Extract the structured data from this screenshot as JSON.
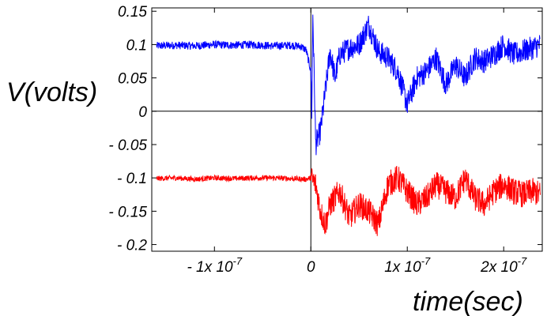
{
  "chart_data": {
    "type": "line",
    "title": "",
    "xlabel": "time(sec)",
    "ylabel": "V(volts)",
    "xlim": [
      -1.65e-07,
      2.4e-07
    ],
    "ylim": [
      -0.21,
      0.155
    ],
    "grid": false,
    "x_ticks": [
      {
        "value": -1e-07,
        "label": "- 1x 10",
        "exp": "-7"
      },
      {
        "value": 0,
        "label": "0",
        "exp": ""
      },
      {
        "value": 1e-07,
        "label": "1x 10",
        "exp": "-7"
      },
      {
        "value": 2e-07,
        "label": "2x 10",
        "exp": "-7"
      }
    ],
    "y_ticks": [
      {
        "value": 0.15,
        "label": "0.15"
      },
      {
        "value": 0.1,
        "label": "0.1"
      },
      {
        "value": 0.05,
        "label": "0.05"
      },
      {
        "value": 0,
        "label": "0"
      },
      {
        "value": -0.05,
        "label": "- 0.05"
      },
      {
        "value": -0.1,
        "label": "- 0.1"
      },
      {
        "value": -0.15,
        "label": "- 0.15"
      },
      {
        "value": -0.2,
        "label": "- 0.2"
      }
    ],
    "series": [
      {
        "color": "#0000ff",
        "x": [
          -1.6e-07,
          -1.4e-07,
          -1.2e-07,
          -1e-07,
          -8e-08,
          -6e-08,
          -4e-08,
          -2e-08,
          -1e-08,
          -5e-09,
          0,
          1e-09,
          2e-09,
          5e-09,
          1e-08,
          1.5e-08,
          2e-08,
          2.5e-08,
          3e-08,
          4e-08,
          5e-08,
          6e-08,
          7e-08,
          8e-08,
          9e-08,
          1e-07,
          1.1e-07,
          1.2e-07,
          1.3e-07,
          1.4e-07,
          1.5e-07,
          1.6e-07,
          1.7e-07,
          1.8e-07,
          1.9e-07,
          2e-07,
          2.1e-07,
          2.2e-07,
          2.3e-07,
          2.38e-07
        ],
        "y": [
          0.098,
          0.099,
          0.098,
          0.1,
          0.099,
          0.1,
          0.098,
          0.099,
          0.097,
          0.092,
          0.06,
          -0.01,
          0.15,
          -0.05,
          -0.03,
          0.03,
          0.09,
          0.05,
          0.085,
          0.095,
          0.1,
          0.13,
          0.09,
          0.08,
          0.06,
          0.01,
          0.05,
          0.06,
          0.08,
          0.04,
          0.07,
          0.05,
          0.08,
          0.075,
          0.085,
          0.1,
          0.085,
          0.09,
          0.095,
          0.1
        ],
        "noise": 0.018,
        "noise_before_event": 0.006
      },
      {
        "color": "#ff0000",
        "x": [
          -1.6e-07,
          -1.4e-07,
          -1.2e-07,
          -1e-07,
          -8e-08,
          -6e-08,
          -4e-08,
          -2e-08,
          -5e-09,
          0,
          5e-09,
          1e-08,
          1.5e-08,
          2e-08,
          3e-08,
          4e-08,
          5e-08,
          6e-08,
          7e-08,
          8e-08,
          9e-08,
          1e-07,
          1.1e-07,
          1.2e-07,
          1.3e-07,
          1.4e-07,
          1.5e-07,
          1.6e-07,
          1.7e-07,
          1.8e-07,
          1.9e-07,
          2e-07,
          2.1e-07,
          2.2e-07,
          2.3e-07,
          2.38e-07
        ],
        "y": [
          -0.101,
          -0.1,
          -0.102,
          -0.1,
          -0.101,
          -0.1,
          -0.1,
          -0.101,
          -0.102,
          -0.1,
          -0.11,
          -0.15,
          -0.17,
          -0.14,
          -0.12,
          -0.16,
          -0.14,
          -0.15,
          -0.17,
          -0.11,
          -0.1,
          -0.12,
          -0.14,
          -0.13,
          -0.11,
          -0.12,
          -0.13,
          -0.1,
          -0.13,
          -0.14,
          -0.12,
          -0.11,
          -0.12,
          -0.125,
          -0.12,
          -0.125
        ],
        "noise": 0.02,
        "noise_before_event": 0.004
      }
    ]
  }
}
